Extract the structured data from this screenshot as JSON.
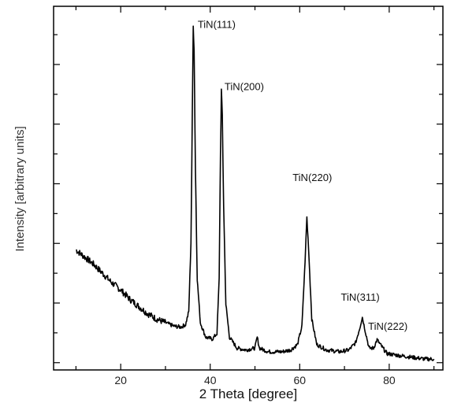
{
  "chart_data": {
    "type": "line",
    "title": "",
    "xlabel": "2  Theta  [degree]",
    "ylabel": "Intensity [arbitrary units]",
    "xlim": [
      5,
      92
    ],
    "ylim": [
      0,
      100
    ],
    "x_ticks": [
      20,
      40,
      60,
      80
    ],
    "y_tick_labels_shown": false,
    "grid": false,
    "line_color": "#000000",
    "series": [
      {
        "points": [
          [
            10,
            33
          ],
          [
            12,
            31
          ],
          [
            14,
            29
          ],
          [
            16,
            26.5
          ],
          [
            18,
            24
          ],
          [
            20,
            22
          ],
          [
            22,
            19.5
          ],
          [
            24,
            17.5
          ],
          [
            26,
            15.5
          ],
          [
            28,
            14
          ],
          [
            30,
            13
          ],
          [
            32,
            12
          ],
          [
            33.5,
            11.8
          ],
          [
            34.5,
            12.5
          ],
          [
            35.2,
            16
          ],
          [
            35.7,
            35
          ],
          [
            36.0,
            70
          ],
          [
            36.2,
            95
          ],
          [
            36.4,
            88
          ],
          [
            36.7,
            55
          ],
          [
            37.1,
            25
          ],
          [
            37.8,
            13
          ],
          [
            39,
            9
          ],
          [
            40.5,
            8.5
          ],
          [
            41.5,
            10
          ],
          [
            42.0,
            25
          ],
          [
            42.3,
            60
          ],
          [
            42.5,
            77
          ],
          [
            42.7,
            70
          ],
          [
            43.0,
            45
          ],
          [
            43.5,
            18
          ],
          [
            44.3,
            9
          ],
          [
            46,
            6
          ],
          [
            48,
            5.5
          ],
          [
            50,
            6
          ],
          [
            50.5,
            9
          ],
          [
            51,
            6
          ],
          [
            53,
            5
          ],
          [
            56,
            5
          ],
          [
            58,
            5.5
          ],
          [
            59.5,
            7
          ],
          [
            60.5,
            12
          ],
          [
            61.2,
            30
          ],
          [
            61.6,
            42
          ],
          [
            62.0,
            33
          ],
          [
            62.7,
            14
          ],
          [
            63.8,
            7
          ],
          [
            66,
            5.5
          ],
          [
            69,
            5
          ],
          [
            71,
            5.5
          ],
          [
            72.5,
            7.5
          ],
          [
            73.4,
            11.5
          ],
          [
            74.0,
            14.5
          ],
          [
            74.6,
            11
          ],
          [
            75.5,
            6
          ],
          [
            76.5,
            6
          ],
          [
            77.3,
            8.3
          ],
          [
            78,
            7
          ],
          [
            79.5,
            4.5
          ],
          [
            82,
            4
          ],
          [
            85,
            3.5
          ],
          [
            88,
            3
          ],
          [
            90,
            3
          ]
        ]
      }
    ],
    "annotations": [
      {
        "text": "TiN(111)",
        "x": 37.2,
        "y": 94
      },
      {
        "text": "TiN(200)",
        "x": 43.2,
        "y": 77
      },
      {
        "text": "TiN(220)",
        "x": 58.4,
        "y": 52
      },
      {
        "text": "TiN(311)",
        "x": 69.2,
        "y": 19
      },
      {
        "text": "TiN(222)",
        "x": 75.3,
        "y": 11
      }
    ]
  }
}
